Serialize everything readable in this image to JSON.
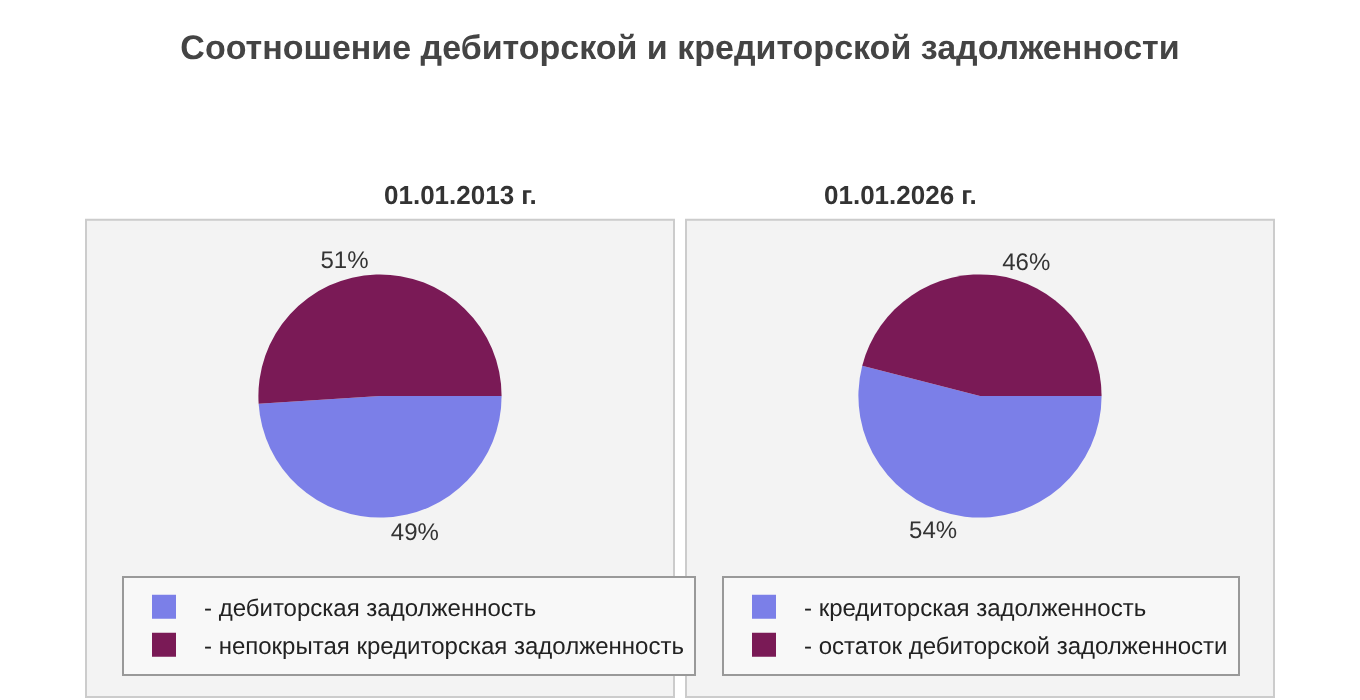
{
  "chart_data": [
    {
      "type": "pie",
      "title": "Соотношение дебиторской и кредиторской задолженности",
      "subtitle": "01.01.2013 г.",
      "categories": [
        "- дебиторская задолженность",
        "- непокрытая кредиторская задолженность"
      ],
      "values": [
        49,
        51
      ],
      "colors": [
        "#7b7fe8",
        "#7a1a56"
      ],
      "value_labels": [
        "49%",
        "51%"
      ],
      "legend": "bottom"
    },
    {
      "type": "pie",
      "subtitle": "01.01.2026 г.",
      "categories": [
        "- кредиторская задолженность",
        "- остаток дебиторской задолженности"
      ],
      "values": [
        54,
        46
      ],
      "colors": [
        "#7b7fe8",
        "#7a1a56"
      ],
      "value_labels": [
        "54%",
        "46%"
      ],
      "legend": "bottom"
    }
  ]
}
